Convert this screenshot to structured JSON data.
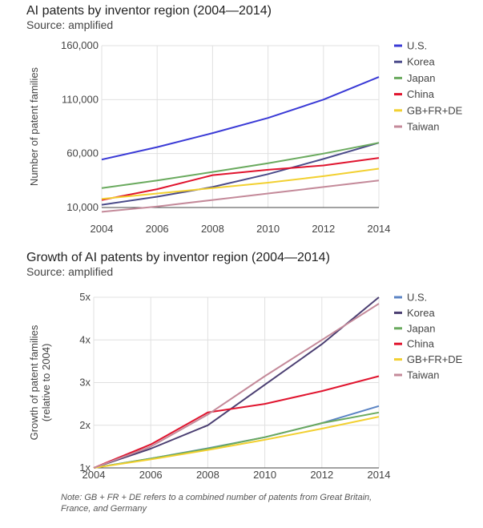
{
  "note": {
    "line1": "Note: GB + FR + DE refers to a combined number of patents from Great Britain,",
    "line2": "France, and Germany"
  },
  "chart_data": [
    {
      "type": "line",
      "title": "AI patents by inventor region (2004—2014)",
      "subtitle": "Source: amplified",
      "ylabel": "Number of patent families",
      "x": [
        2004,
        2006,
        2008,
        2010,
        2012,
        2014
      ],
      "x_ticks": [
        "2004",
        "2006",
        "2008",
        "2010",
        "2012",
        "2014"
      ],
      "y_ticks": [
        "10,000",
        "60,000",
        "110,000",
        "160,000"
      ],
      "ylim": [
        10000,
        160000
      ],
      "grid": true,
      "legend_position": "right",
      "series": [
        {
          "name": "U.S.",
          "color": "#3a3ad6",
          "values": [
            54500,
            66000,
            79000,
            93000,
            110000,
            131000
          ]
        },
        {
          "name": "Korea",
          "color": "#4b4b8a",
          "values": [
            12500,
            20000,
            29000,
            41000,
            55000,
            70000
          ]
        },
        {
          "name": "Japan",
          "color": "#6aaa5e",
          "values": [
            28000,
            35000,
            43000,
            51000,
            60000,
            70000
          ]
        },
        {
          "name": "China",
          "color": "#e0142e",
          "values": [
            17000,
            27000,
            40000,
            45000,
            49000,
            56000
          ]
        },
        {
          "name": "GB+FR+DE",
          "color": "#f2d031",
          "values": [
            18000,
            23000,
            28000,
            33000,
            39000,
            46000
          ]
        },
        {
          "name": "Taiwan",
          "color": "#c48a9a",
          "values": [
            6000,
            11000,
            17000,
            23000,
            29000,
            35000
          ]
        }
      ]
    },
    {
      "type": "line",
      "title": "Growth of AI patents by inventor region (2004—2014)",
      "subtitle": "Source: amplified",
      "ylabel": [
        "Growth of patent families",
        "(relative to 2004)"
      ],
      "x": [
        2004,
        2006,
        2008,
        2010,
        2012,
        2014
      ],
      "x_ticks": [
        "2004",
        "2006",
        "2008",
        "2010",
        "2012",
        "2014"
      ],
      "y_ticks": [
        "1x",
        "2x",
        "3x",
        "4x",
        "5x"
      ],
      "ylim": [
        1,
        5
      ],
      "grid": true,
      "legend_position": "right",
      "series": [
        {
          "name": "U.S.",
          "color": "#5b84c4",
          "values": [
            1.0,
            1.22,
            1.46,
            1.72,
            2.05,
            2.45
          ]
        },
        {
          "name": "Korea",
          "color": "#4b3f72",
          "values": [
            1.0,
            1.45,
            2.0,
            2.95,
            3.9,
            5.0
          ]
        },
        {
          "name": "Japan",
          "color": "#6aaa5e",
          "values": [
            1.0,
            1.22,
            1.45,
            1.72,
            2.05,
            2.3
          ]
        },
        {
          "name": "China",
          "color": "#e0142e",
          "values": [
            1.0,
            1.55,
            2.3,
            2.5,
            2.8,
            3.15
          ]
        },
        {
          "name": "GB+FR+DE",
          "color": "#f2d031",
          "values": [
            1.0,
            1.2,
            1.42,
            1.66,
            1.92,
            2.2
          ]
        },
        {
          "name": "Taiwan",
          "color": "#c48a9a",
          "values": [
            1.0,
            1.5,
            2.25,
            3.15,
            4.0,
            4.85
          ]
        }
      ]
    }
  ]
}
